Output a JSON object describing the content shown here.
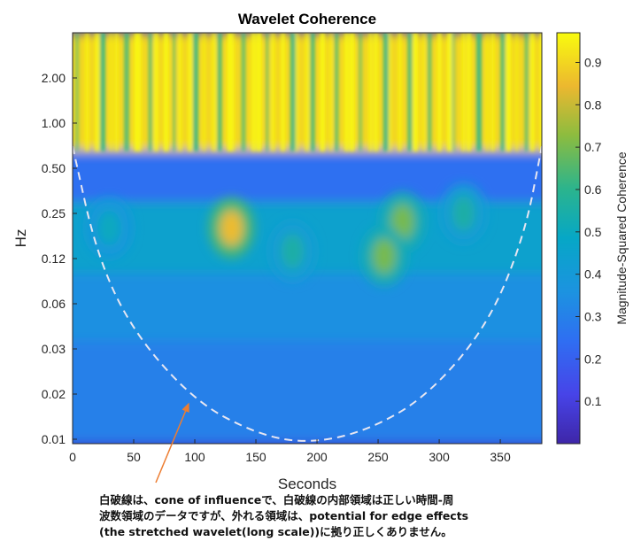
{
  "chart_data": {
    "type": "heatmap",
    "title": "Wavelet Coherence",
    "xlabel": "Seconds",
    "ylabel": "Hz",
    "colorbar_label": "Magnitude-Squared Coherence",
    "x_ticks": [
      0,
      50,
      100,
      150,
      200,
      250,
      300,
      350
    ],
    "x_range": [
      0,
      384
    ],
    "y_scale": "log",
    "y_tick_labels": [
      "2.00",
      "1.00",
      "0.50",
      "0.25",
      "0.12",
      "0.06",
      "0.03",
      "0.02",
      "0.01"
    ],
    "y_tick_values": [
      2.0,
      1.0,
      0.5,
      0.25,
      0.125,
      0.0625,
      0.03125,
      0.015625,
      0.0078125
    ],
    "y_range": [
      0.0073,
      4.0
    ],
    "colorbar_ticks": [
      "0.1",
      "0.2",
      "0.3",
      "0.4",
      "0.5",
      "0.6",
      "0.7",
      "0.8",
      "0.9"
    ],
    "colorbar_tick_values": [
      0.1,
      0.2,
      0.3,
      0.4,
      0.5,
      0.6,
      0.7,
      0.8,
      0.9
    ],
    "colorbar_range": [
      0.0,
      0.97
    ],
    "colormap": "parula",
    "bands": [
      {
        "freq_range_hz": [
          0.65,
          4.0
        ],
        "coherence": 0.9
      },
      {
        "freq_range_hz": [
          0.3,
          0.65
        ],
        "coherence": 0.25
      },
      {
        "freq_range_hz": [
          0.1,
          0.3
        ],
        "coherence": 0.45
      },
      {
        "freq_range_hz": [
          0.035,
          0.1
        ],
        "coherence": 0.35
      },
      {
        "freq_range_hz": [
          0.0073,
          0.035
        ],
        "coherence": 0.3
      }
    ],
    "hotspots": [
      {
        "x": 130,
        "freq_hz": 0.2,
        "coherence": 0.85
      },
      {
        "x": 270,
        "freq_hz": 0.22,
        "coherence": 0.7
      },
      {
        "x": 255,
        "freq_hz": 0.13,
        "coherence": 0.7
      },
      {
        "x": 30,
        "freq_hz": 0.2,
        "coherence": 0.5
      },
      {
        "x": 180,
        "freq_hz": 0.14,
        "coherence": 0.55
      },
      {
        "x": 320,
        "freq_hz": 0.25,
        "coherence": 0.55
      }
    ],
    "cone_of_influence": {
      "style": "white dashed",
      "x": [
        0,
        20,
        50,
        100,
        150,
        192,
        240,
        290,
        340,
        370,
        384
      ],
      "freq_hz": [
        0.7,
        0.13,
        0.04,
        0.014,
        0.0085,
        0.0073,
        0.0088,
        0.015,
        0.045,
        0.18,
        0.7
      ]
    },
    "annotation": {
      "text_lines": [
        "白破線は、cone of influenceで、白破線の内部領域は正しい時間-周",
        "波数領域のデータですが、外れる領域は、potential for edge effects",
        "(the stretched wavelet(long scale))に拠り正しくありません。"
      ],
      "arrow_color": "#ED7D31"
    }
  }
}
